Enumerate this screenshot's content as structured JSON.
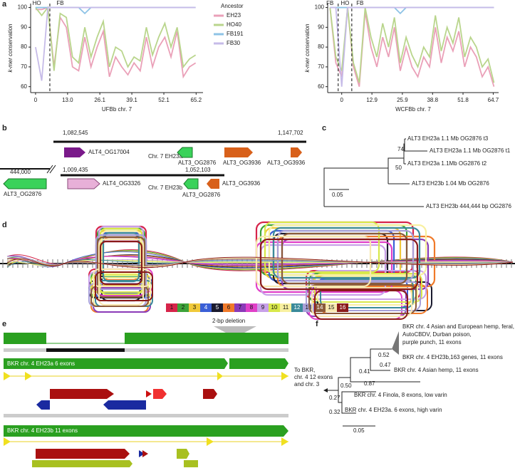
{
  "chart_data": [
    {
      "type": "line",
      "panel": "a",
      "ylabel": "k-mer conservation",
      "xlabel": "UFBb chr. 7",
      "x": [
        0,
        2.5,
        5,
        7.5,
        10,
        12.5,
        15,
        17.5,
        20,
        22.5,
        25,
        27.5,
        30,
        32.5,
        35,
        37.5,
        40,
        42.5,
        45,
        47.5,
        50,
        52.5,
        55,
        57.5,
        60,
        62.5,
        65
      ],
      "xlim": [
        -2,
        68
      ],
      "ylim": [
        57,
        102
      ],
      "xticks": [
        0,
        {
          "value": 13,
          "label": "13.0"
        },
        26.1,
        39.1,
        52.1,
        65.2
      ],
      "yticks": [
        60,
        70,
        80,
        90,
        100
      ],
      "legend_title": "Ancestor",
      "legend": "outside-right",
      "vlines": [
        5.8
      ],
      "annotations": [
        {
          "text": "HO",
          "x": 0.5
        },
        {
          "text": "FB",
          "x": 10
        }
      ],
      "series": [
        {
          "name": "EH23",
          "color": "#eaa0b8",
          "values": [
            99,
            99,
            100,
            70,
            95,
            90,
            70,
            68,
            85,
            70,
            80,
            88,
            65,
            75,
            70,
            66,
            72,
            68,
            85,
            70,
            80,
            85,
            75,
            88,
            65,
            70,
            72
          ]
        },
        {
          "name": "HO40",
          "color": "#b9d58c",
          "values": [
            100,
            96,
            100,
            68,
            97,
            95,
            75,
            72,
            90,
            75,
            85,
            93,
            70,
            80,
            78,
            70,
            75,
            73,
            90,
            76,
            85,
            92,
            80,
            90,
            70,
            74,
            76
          ]
        },
        {
          "name": "FB191",
          "color": "#8ec3e6",
          "values": [
            100,
            100,
            100,
            100,
            100,
            100,
            100,
            100,
            97,
            100,
            100,
            100,
            100,
            100,
            100,
            100,
            100,
            100,
            100,
            100,
            100,
            100,
            100,
            100,
            100,
            100,
            100
          ]
        },
        {
          "name": "FB30",
          "color": "#c6bbe8",
          "values": [
            80,
            63,
            100,
            100,
            100,
            100,
            100,
            100,
            100,
            100,
            100,
            100,
            100,
            100,
            100,
            100,
            100,
            100,
            100,
            100,
            100,
            100,
            100,
            100,
            100,
            100,
            100
          ]
        }
      ]
    },
    {
      "type": "line",
      "ylabel": "k-mer conservation",
      "xlabel": "WCFBb chr. 7",
      "x": [
        -5,
        -2.5,
        0,
        2.5,
        5,
        7.5,
        10,
        12.5,
        15,
        17.5,
        20,
        22.5,
        25,
        27.5,
        30,
        32.5,
        35,
        37.5,
        40,
        42.5,
        45,
        47.5,
        50,
        52.5,
        55,
        57.5,
        60,
        62.5,
        65
      ],
      "xlim": [
        -6,
        67
      ],
      "ylim": [
        57,
        102
      ],
      "xticks": [
        0,
        12.9,
        25.9,
        38.8,
        51.8,
        64.7
      ],
      "yticks": [
        60,
        70,
        80,
        90,
        100
      ],
      "vlines": [
        -1.5,
        4.3
      ],
      "annotations": [
        {
          "text": "FB",
          "x": -5
        },
        {
          "text": "HO",
          "x": 1.4
        },
        {
          "text": "FB",
          "x": 7.8
        }
      ],
      "series": [
        {
          "name": "EH23",
          "color": "#eaa0b8",
          "values": [
            100,
            72,
            65,
            100,
            70,
            60,
            98,
            80,
            70,
            85,
            75,
            90,
            68,
            80,
            70,
            65,
            75,
            70,
            90,
            72,
            85,
            78,
            88,
            70,
            80,
            75,
            65,
            70,
            60
          ]
        },
        {
          "name": "HO40",
          "color": "#b9d58c",
          "values": [
            100,
            75,
            68,
            100,
            72,
            62,
            100,
            85,
            75,
            92,
            80,
            95,
            72,
            85,
            76,
            70,
            80,
            75,
            96,
            78,
            90,
            82,
            95,
            75,
            85,
            80,
            70,
            74,
            62
          ]
        },
        {
          "name": "FB191",
          "color": "#8ec3e6",
          "values": [
            100,
            100,
            100,
            100,
            100,
            100,
            100,
            100,
            100,
            100,
            100,
            100,
            97,
            100,
            100,
            100,
            100,
            100,
            100,
            100,
            100,
            100,
            100,
            100,
            100,
            100,
            100,
            100,
            100
          ]
        },
        {
          "name": "FB30",
          "color": "#c6bbe8",
          "values": [
            100,
            100,
            60,
            100,
            100,
            100,
            100,
            100,
            100,
            100,
            100,
            100,
            100,
            100,
            100,
            100,
            100,
            100,
            100,
            100,
            100,
            100,
            100,
            100,
            100,
            100,
            100,
            100,
            100
          ]
        }
      ]
    }
  ],
  "panel_b": {
    "label": "b",
    "coords": [
      "1,082,545",
      "1,147,702",
      "444,000",
      "1,009,435",
      "1,052,103"
    ],
    "chromosomes": [
      "Chr. 7 EH23a",
      "Chr. 7 EH23b"
    ],
    "genes": [
      "ALT4_OG17004",
      "ALT3_OG2876",
      "ALT3_OG3936",
      "ALT3_OG3936",
      "ALT3_OG2876",
      "ALT4_OG3326",
      "ALT3_OG2876",
      "ALT3_OG3936"
    ]
  },
  "panel_c": {
    "label": "c",
    "leaves": [
      "ALT3 EH23a 1.1 Mb OG2876 t3",
      "ALT3 EH23a 1.1 Mb OG2876 t1",
      "ALT3 EH23a 1.1Mb OG2876 t2",
      "ALT3 EH23b 1.04 Mb OG2876",
      "ALT3 EH23b 444,444 bp OG2876"
    ],
    "support": [
      "74",
      "50"
    ],
    "scale": "0.05"
  },
  "panel_d": {
    "label": "d",
    "legend": {
      "labels": [
        "1",
        "2",
        "3",
        "4",
        "5",
        "6",
        "7",
        "8",
        "9",
        "10",
        "11",
        "12",
        "13",
        "14",
        "15",
        "16"
      ],
      "colors": [
        "#d6244a",
        "#3da33a",
        "#f0c93a",
        "#3a5fd6",
        "#1a1a2e",
        "#f07a2a",
        "#8a3ab8",
        "#e040c8",
        "#c8a0e8",
        "#d8e84a",
        "#f8f0a0",
        "#3a8a9a",
        "#a8a0d8",
        "#8a5a3a",
        "#f8e8b0",
        "#8a1a1a"
      ]
    }
  },
  "panel_e": {
    "label": "e",
    "annotation": "2-bp deletion",
    "tracks": [
      "BKR chr. 4 EH23a 6 exons",
      "BKR chr. 4 EH23b 11 exons"
    ]
  },
  "panel_f": {
    "label": "f",
    "leaves": [
      [
        "BKR chr. 4 Asian and European hemp, feral,",
        "AutoCBDV, Durban poison,",
        "purple punch, 11 exons"
      ],
      [
        "BKR chr. 4 EH23b,163 genes, 11 exons"
      ],
      [
        "BKR chr. 4 Asian hemp, 11 exons"
      ],
      [
        "BKR chr. 4 Finola, 8 exons, low varin"
      ],
      [
        "BKR chr. 4 EH23a. 6 exons, high varin"
      ]
    ],
    "outgroup": [
      "To BKR,",
      "chr. 4 12 exons",
      "and chr. 3"
    ],
    "support": [
      "0.52",
      "0.47",
      "0.41",
      "0.87",
      "0.50",
      "0.27",
      "0.32"
    ],
    "scale": "0.05"
  }
}
